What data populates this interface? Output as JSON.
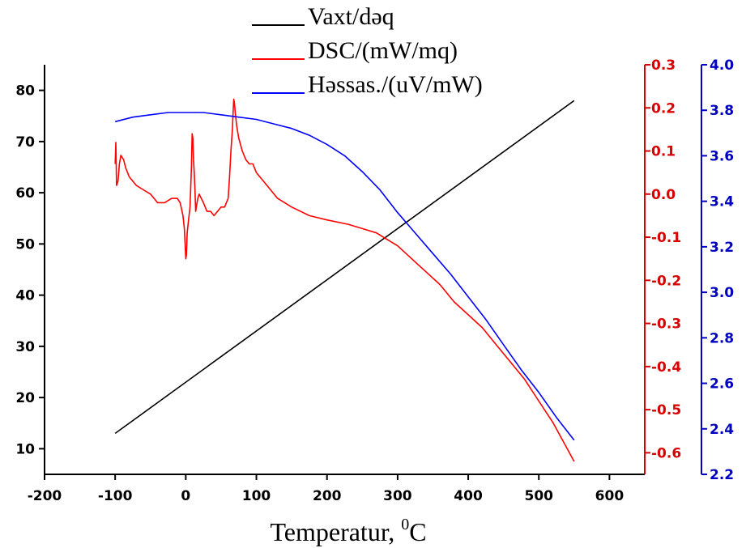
{
  "chart_data": {
    "type": "line",
    "xlabel": "Temperatur, ",
    "xlabel_sup": "0",
    "xlabel_unit": "C",
    "xlim": [
      -200,
      650
    ],
    "x_ticks": [
      "-200",
      "-100",
      "0",
      "100",
      "200",
      "300",
      "400",
      "500",
      "600"
    ],
    "axes": {
      "left": {
        "range": [
          5,
          85
        ],
        "ticks": [
          "10",
          "20",
          "30",
          "40",
          "50",
          "60",
          "70",
          "80"
        ],
        "color": "#000000"
      },
      "right1": {
        "range": [
          -0.65,
          0.3
        ],
        "ticks": [
          "0.3",
          "0.2",
          "0.1",
          "0.0",
          "-0.1",
          "-0.2",
          "-0.3",
          "-0.4",
          "-0.5",
          "-0.6"
        ],
        "color": "#d80000"
      },
      "right2": {
        "range": [
          2.2,
          4.0
        ],
        "ticks": [
          "4.0",
          "3.8",
          "3.6",
          "3.4",
          "3.2",
          "3.0",
          "2.8",
          "2.6",
          "2.4",
          "2.2"
        ],
        "color": "#0000c0"
      }
    },
    "legend_position": "top-center",
    "series": [
      {
        "name": "Vaxt/dəq",
        "color": "#000000",
        "axis": "left",
        "points": [
          [
            -100,
            13
          ],
          [
            550,
            78
          ]
        ]
      },
      {
        "name": "DSC/(mW/mq)",
        "color": "#ff0000",
        "axis": "right1",
        "points": [
          [
            -100,
            0.07
          ],
          [
            -99,
            0.12
          ],
          [
            -98,
            0.02
          ],
          [
            -96,
            0.03
          ],
          [
            -94,
            0.07
          ],
          [
            -92,
            0.09
          ],
          [
            -88,
            0.08
          ],
          [
            -85,
            0.06
          ],
          [
            -80,
            0.04
          ],
          [
            -70,
            0.02
          ],
          [
            -60,
            0.01
          ],
          [
            -50,
            0.0
          ],
          [
            -40,
            -0.02
          ],
          [
            -30,
            -0.02
          ],
          [
            -20,
            -0.01
          ],
          [
            -12,
            -0.01
          ],
          [
            -8,
            -0.02
          ],
          [
            -4,
            -0.05
          ],
          [
            -2,
            -0.08
          ],
          [
            0,
            -0.15
          ],
          [
            1,
            -0.14
          ],
          [
            2,
            -0.09
          ],
          [
            4,
            -0.06
          ],
          [
            6,
            -0.03
          ],
          [
            8,
            0.06
          ],
          [
            9,
            0.14
          ],
          [
            10,
            0.13
          ],
          [
            11,
            0.08
          ],
          [
            12,
            0.05
          ],
          [
            13,
            0.01
          ],
          [
            14,
            -0.04
          ],
          [
            15,
            -0.03
          ],
          [
            17,
            -0.01
          ],
          [
            19,
            0.0
          ],
          [
            22,
            -0.01
          ],
          [
            25,
            -0.02
          ],
          [
            30,
            -0.04
          ],
          [
            35,
            -0.04
          ],
          [
            40,
            -0.05
          ],
          [
            45,
            -0.04
          ],
          [
            50,
            -0.03
          ],
          [
            55,
            -0.03
          ],
          [
            60,
            -0.01
          ],
          [
            62,
            0.04
          ],
          [
            64,
            0.1
          ],
          [
            66,
            0.15
          ],
          [
            67,
            0.19
          ],
          [
            68,
            0.22
          ],
          [
            69,
            0.21
          ],
          [
            70,
            0.19
          ],
          [
            72,
            0.16
          ],
          [
            75,
            0.13
          ],
          [
            80,
            0.1
          ],
          [
            85,
            0.08
          ],
          [
            90,
            0.07
          ],
          [
            95,
            0.07
          ],
          [
            100,
            0.05
          ],
          [
            110,
            0.03
          ],
          [
            120,
            0.01
          ],
          [
            130,
            -0.01
          ],
          [
            140,
            -0.02
          ],
          [
            150,
            -0.03
          ],
          [
            175,
            -0.05
          ],
          [
            200,
            -0.06
          ],
          [
            230,
            -0.07
          ],
          [
            250,
            -0.08
          ],
          [
            270,
            -0.09
          ],
          [
            280,
            -0.1
          ],
          [
            300,
            -0.12
          ],
          [
            320,
            -0.15
          ],
          [
            340,
            -0.18
          ],
          [
            360,
            -0.21
          ],
          [
            380,
            -0.25
          ],
          [
            400,
            -0.28
          ],
          [
            420,
            -0.31
          ],
          [
            440,
            -0.35
          ],
          [
            460,
            -0.39
          ],
          [
            480,
            -0.43
          ],
          [
            500,
            -0.48
          ],
          [
            520,
            -0.53
          ],
          [
            540,
            -0.59
          ],
          [
            550,
            -0.62
          ]
        ]
      },
      {
        "name": "Həssas./(uV/mW)",
        "color": "#0000ff",
        "axis": "right2",
        "points": [
          [
            -100,
            3.75
          ],
          [
            -75,
            3.77
          ],
          [
            -50,
            3.78
          ],
          [
            -25,
            3.79
          ],
          [
            0,
            3.79
          ],
          [
            25,
            3.79
          ],
          [
            50,
            3.78
          ],
          [
            75,
            3.77
          ],
          [
            100,
            3.76
          ],
          [
            125,
            3.74
          ],
          [
            150,
            3.72
          ],
          [
            175,
            3.69
          ],
          [
            200,
            3.65
          ],
          [
            225,
            3.6
          ],
          [
            250,
            3.53
          ],
          [
            275,
            3.45
          ],
          [
            300,
            3.35
          ],
          [
            325,
            3.26
          ],
          [
            350,
            3.17
          ],
          [
            375,
            3.08
          ],
          [
            400,
            2.98
          ],
          [
            425,
            2.88
          ],
          [
            450,
            2.77
          ],
          [
            475,
            2.66
          ],
          [
            500,
            2.56
          ],
          [
            525,
            2.45
          ],
          [
            550,
            2.35
          ]
        ]
      }
    ]
  }
}
